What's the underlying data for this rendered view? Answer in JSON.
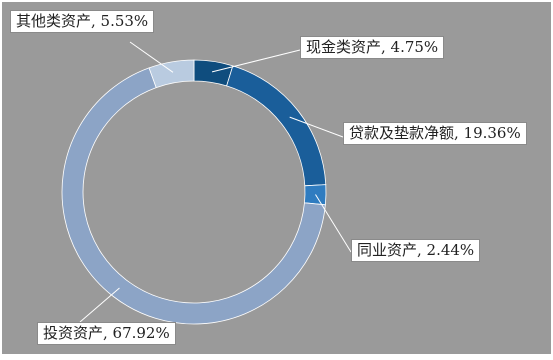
{
  "chart_data": {
    "type": "pie",
    "subtype": "donut",
    "title": "",
    "slices": [
      {
        "label": "现金类资产",
        "value": 4.75,
        "display": "现金类资产, 4.75%",
        "color": "#0f4d7e"
      },
      {
        "label": "贷款及垫款净额",
        "value": 19.36,
        "display": "贷款及垫款净额, 19.36%",
        "color": "#1a5e9a"
      },
      {
        "label": "同业资产",
        "value": 2.44,
        "display": "同业资产, 2.44%",
        "color": "#2f7cc0"
      },
      {
        "label": "投资资产",
        "value": 67.92,
        "display": "投资资产, 67.92%",
        "color": "#8ca4c6"
      },
      {
        "label": "其他类资产",
        "value": 5.53,
        "display": "其他类资产, 5.53%",
        "color": "#b9cbe0"
      }
    ],
    "start_angle_deg": 0,
    "direction": "clockwise",
    "background": "#9a9a9a"
  }
}
